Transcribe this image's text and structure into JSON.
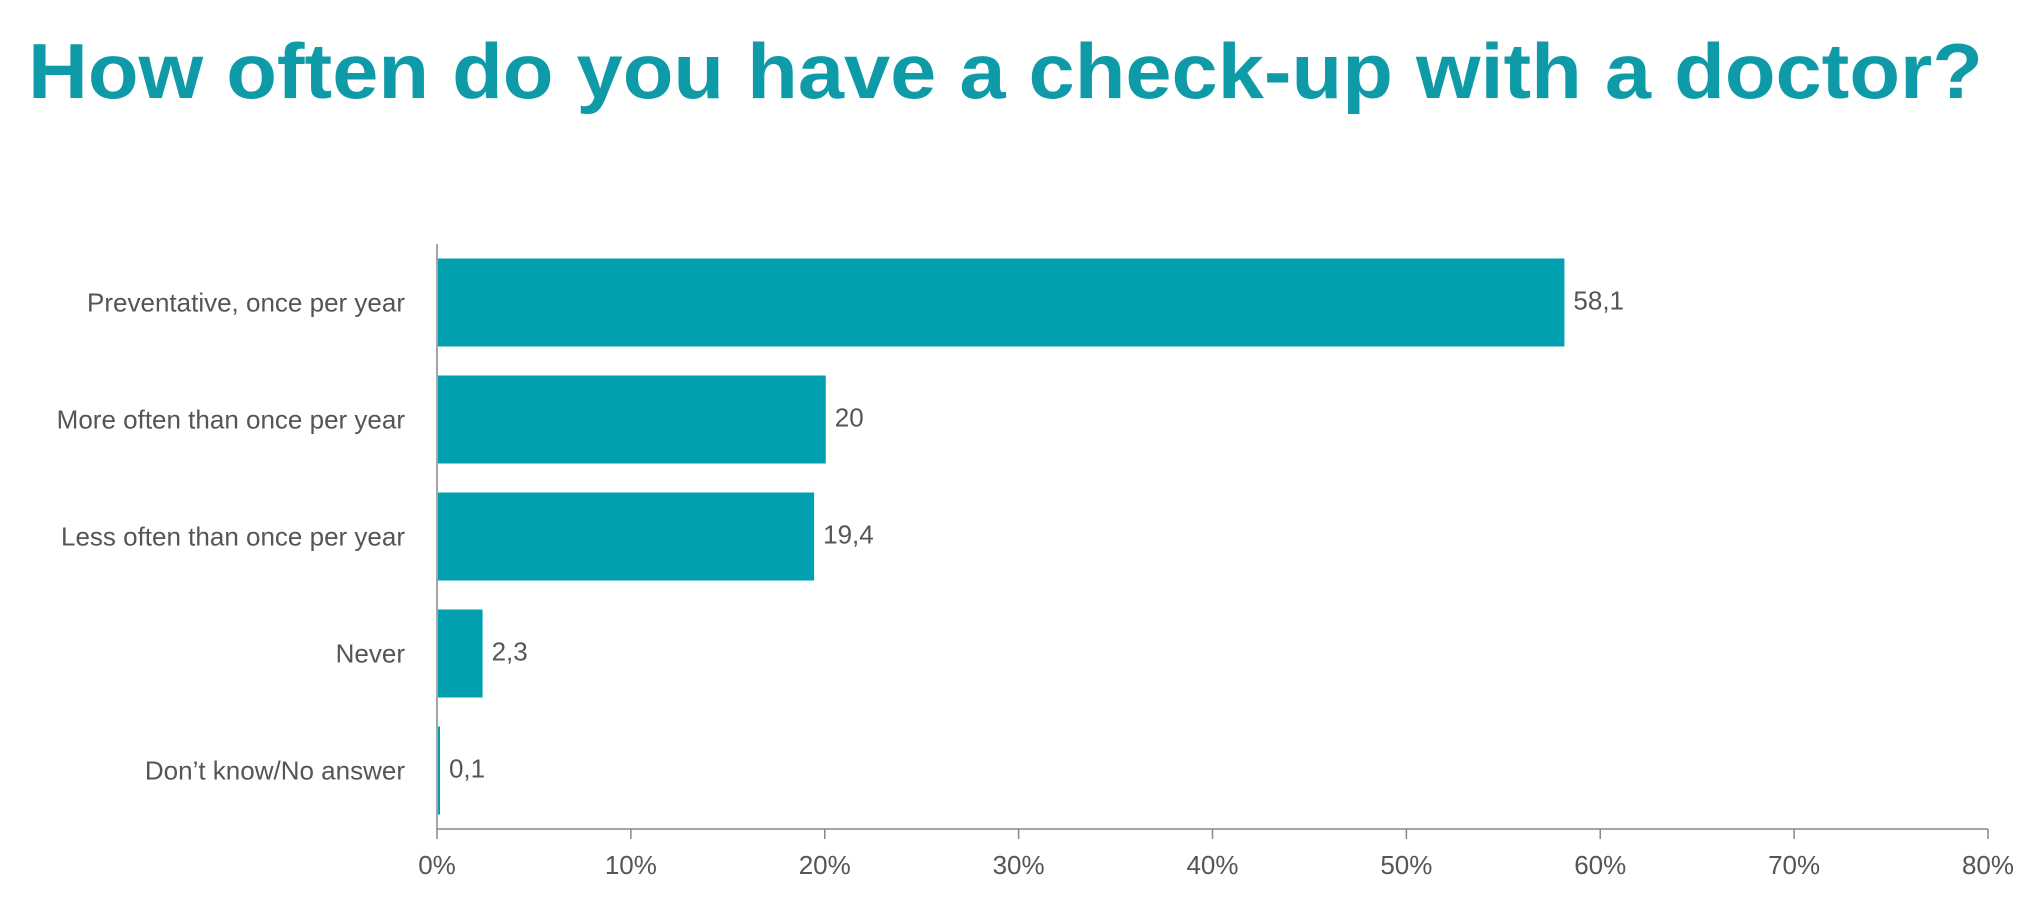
{
  "chart_data": {
    "type": "bar",
    "orientation": "horizontal",
    "title": "How often do you have a check-up with a doctor?",
    "categories": [
      "Preventative, once per year",
      "More often than once per year",
      "Less often than once per year",
      "Never",
      "Don’t know/No answer"
    ],
    "values": [
      58.1,
      20,
      19.4,
      2.3,
      0.1
    ],
    "value_labels": [
      "58,1",
      "20",
      "19,4",
      "2,3",
      "0,1"
    ],
    "color": "#00a0b0",
    "xlim": [
      0,
      80
    ],
    "xticks": [
      {
        "value": 0,
        "label": "0%"
      },
      {
        "value": 10,
        "label": "10%"
      },
      {
        "value": 20,
        "label": "20%"
      },
      {
        "value": 30,
        "label": "30%"
      },
      {
        "value": 40,
        "label": "40%"
      },
      {
        "value": 50,
        "label": "50%"
      },
      {
        "value": 60,
        "label": "60%"
      },
      {
        "value": 70,
        "label": "70%"
      },
      {
        "value": 80,
        "label": "80%"
      }
    ],
    "grid": false
  }
}
